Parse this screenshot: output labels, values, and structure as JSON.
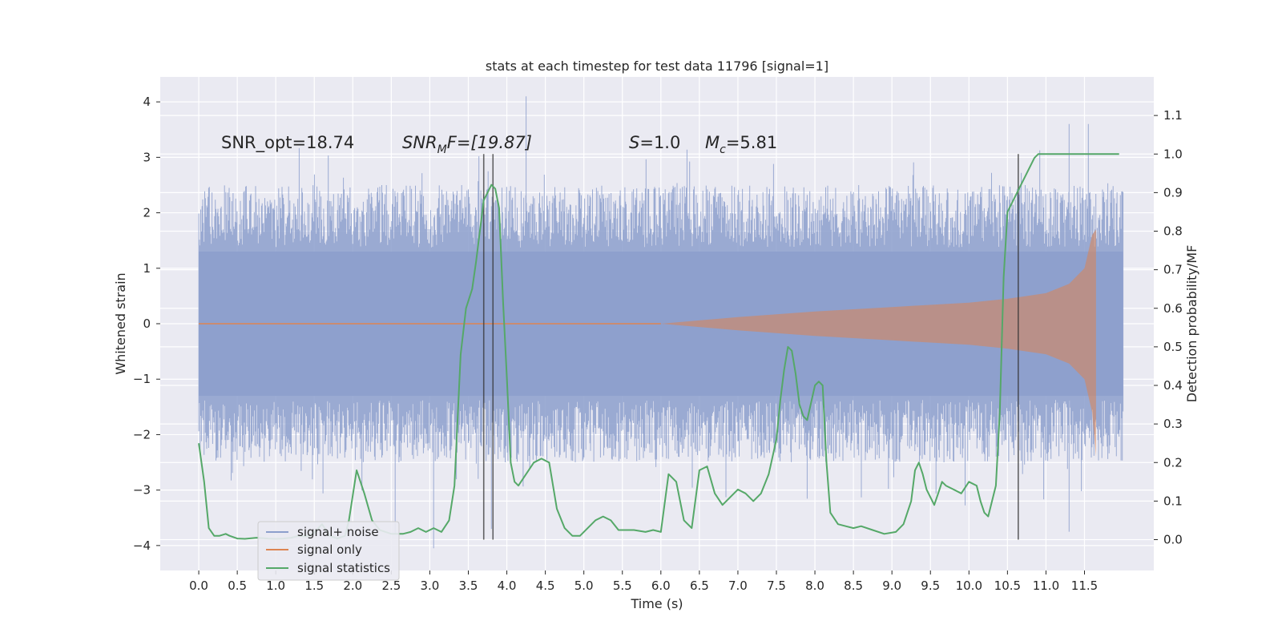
{
  "chart_data": {
    "type": "line",
    "title": "stats at each timestep for test data 11796 [signal=1]",
    "xlabel": "Time (s)",
    "ylabel_left": "Whitened strain",
    "ylabel_right": "Detection probability/MF",
    "xlim": [
      -0.5,
      12.4
    ],
    "ylim_left": [
      -4.45,
      4.45
    ],
    "ylim_right": [
      -0.08,
      1.2
    ],
    "x_ticks": [
      0.0,
      0.5,
      1.0,
      1.5,
      2.0,
      2.5,
      3.0,
      3.5,
      4.0,
      4.5,
      5.0,
      5.5,
      6.0,
      6.5,
      7.0,
      7.5,
      8.0,
      8.5,
      9.0,
      9.5,
      10.0,
      10.5,
      11.0,
      11.5
    ],
    "x_tick_labels": [
      "0.0",
      "0.5",
      "1.0",
      "1.5",
      "2.0",
      "2.5",
      "3.0",
      "3.5",
      "4.0",
      "4.5",
      "5.0",
      "5.5",
      "6.0",
      "6.5",
      "7.0",
      "7.5",
      "8.0",
      "8.5",
      "9.0",
      "9.5",
      "10.0",
      "10.5",
      "11.0",
      "11.5"
    ],
    "y_ticks_left": [
      4,
      3,
      2,
      1,
      0,
      -1,
      -2,
      -3,
      -4
    ],
    "y_tick_labels_left": [
      "4",
      "3",
      "2",
      "1",
      "0",
      "−1",
      "−2",
      "−3",
      "−4"
    ],
    "y_ticks_right": [
      1.1,
      1.0,
      0.9,
      0.8,
      0.7,
      0.6,
      0.5,
      0.4,
      0.3,
      0.2,
      0.1,
      0.0
    ],
    "y_tick_labels_right": [
      "1.1",
      "1.0",
      "0.9",
      "0.8",
      "0.7",
      "0.6",
      "0.5",
      "0.4",
      "0.3",
      "0.2",
      "0.1",
      "0.0"
    ],
    "grid": true,
    "legend_position": "lower-left",
    "legend": [
      {
        "label": "signal+ noise",
        "color": "#8c9fcc"
      },
      {
        "label": "signal only",
        "color": "#dd8452"
      },
      {
        "label": "signal statistics",
        "color": "#55a868"
      }
    ],
    "annotations": {
      "snr_opt": "SNR_opt=18.74",
      "snr_mf_sym": "SNR",
      "snr_mf_sub": "M",
      "snr_mf_rest": "F=[19.87]",
      "s_sym": "S",
      "s_rest": "=1.0",
      "mc_sym": "M",
      "mc_sub": "c",
      "mc_rest": "=5.81"
    },
    "series": [
      {
        "name": "signal+ noise",
        "kind": "noise-band",
        "x_range": [
          0.0,
          12.0
        ],
        "core_band": [
          -1.3,
          1.3
        ],
        "typical_peak_range": [
          -2.5,
          2.5
        ],
        "max": 4.1,
        "min": -4.1
      },
      {
        "name": "signal only",
        "kind": "chirp-envelope",
        "x_start": 6.0,
        "x_end": 11.65,
        "envelope_x": [
          6.0,
          7.0,
          8.0,
          9.0,
          10.0,
          10.5,
          11.0,
          11.3,
          11.5,
          11.6,
          11.65
        ],
        "envelope_y": [
          0.0,
          0.12,
          0.22,
          0.3,
          0.38,
          0.45,
          0.55,
          0.72,
          1.0,
          1.6,
          1.7
        ],
        "low_y": -2.4
      },
      {
        "name": "signal statistics",
        "x": [
          0.0,
          0.07,
          0.13,
          0.2,
          0.27,
          0.35,
          0.4,
          0.5,
          0.6,
          0.75,
          0.9,
          1.0,
          1.1,
          1.2,
          1.3,
          1.4,
          1.5,
          1.6,
          1.7,
          1.8,
          1.9,
          1.95,
          2.05,
          2.15,
          2.25,
          2.35,
          2.5,
          2.65,
          2.75,
          2.85,
          2.95,
          3.05,
          3.15,
          3.25,
          3.32,
          3.4,
          3.47,
          3.55,
          3.6,
          3.65,
          3.7,
          3.75,
          3.8,
          3.85,
          3.9,
          3.95,
          4.0,
          4.05,
          4.1,
          4.15,
          4.25,
          4.35,
          4.45,
          4.55,
          4.65,
          4.75,
          4.85,
          4.95,
          5.05,
          5.15,
          5.25,
          5.35,
          5.45,
          5.55,
          5.65,
          5.8,
          5.9,
          6.0,
          6.1,
          6.2,
          6.3,
          6.4,
          6.5,
          6.6,
          6.7,
          6.8,
          6.9,
          7.0,
          7.1,
          7.2,
          7.3,
          7.4,
          7.5,
          7.55,
          7.6,
          7.65,
          7.7,
          7.75,
          7.8,
          7.85,
          7.9,
          8.0,
          8.05,
          8.1,
          8.15,
          8.2,
          8.3,
          8.4,
          8.5,
          8.6,
          8.75,
          8.9,
          9.05,
          9.15,
          9.25,
          9.3,
          9.35,
          9.4,
          9.45,
          9.5,
          9.55,
          9.6,
          9.65,
          9.7,
          9.8,
          9.9,
          10.0,
          10.1,
          10.15,
          10.2,
          10.25,
          10.3,
          10.35,
          10.4,
          10.45,
          10.5,
          10.55,
          10.6,
          10.65,
          10.7,
          10.75,
          10.8,
          10.85,
          10.9,
          11.0,
          11.5,
          11.95
        ],
        "y": [
          0.25,
          0.15,
          0.03,
          0.01,
          0.01,
          0.015,
          0.01,
          0.003,
          0.002,
          0.005,
          0.003,
          0.002,
          0.003,
          0.005,
          0.01,
          0.008,
          0.018,
          0.04,
          0.01,
          0.003,
          0.01,
          0.05,
          0.18,
          0.12,
          0.05,
          0.025,
          0.015,
          0.015,
          0.02,
          0.03,
          0.02,
          0.03,
          0.02,
          0.05,
          0.14,
          0.48,
          0.6,
          0.65,
          0.72,
          0.8,
          0.88,
          0.9,
          0.92,
          0.91,
          0.86,
          0.62,
          0.42,
          0.2,
          0.15,
          0.14,
          0.17,
          0.2,
          0.21,
          0.2,
          0.08,
          0.03,
          0.01,
          0.01,
          0.03,
          0.05,
          0.06,
          0.05,
          0.025,
          0.025,
          0.025,
          0.02,
          0.025,
          0.02,
          0.17,
          0.15,
          0.05,
          0.03,
          0.18,
          0.19,
          0.12,
          0.09,
          0.11,
          0.13,
          0.12,
          0.1,
          0.12,
          0.17,
          0.26,
          0.36,
          0.44,
          0.5,
          0.49,
          0.43,
          0.35,
          0.32,
          0.31,
          0.4,
          0.41,
          0.4,
          0.2,
          0.07,
          0.04,
          0.035,
          0.03,
          0.035,
          0.025,
          0.015,
          0.02,
          0.04,
          0.1,
          0.18,
          0.2,
          0.17,
          0.13,
          0.11,
          0.09,
          0.12,
          0.15,
          0.14,
          0.13,
          0.12,
          0.15,
          0.14,
          0.1,
          0.07,
          0.06,
          0.1,
          0.14,
          0.33,
          0.68,
          0.85,
          0.87,
          0.89,
          0.91,
          0.93,
          0.95,
          0.97,
          0.99,
          1.0,
          1.0,
          1.0,
          1.0
        ]
      }
    ],
    "vertical_markers": [
      {
        "x": 3.7,
        "y_range": [
          0.0,
          1.0
        ]
      },
      {
        "x": 3.82,
        "y_range": [
          0.0,
          1.0
        ]
      },
      {
        "x": 10.64,
        "y_range": [
          0.0,
          1.0
        ]
      }
    ]
  }
}
